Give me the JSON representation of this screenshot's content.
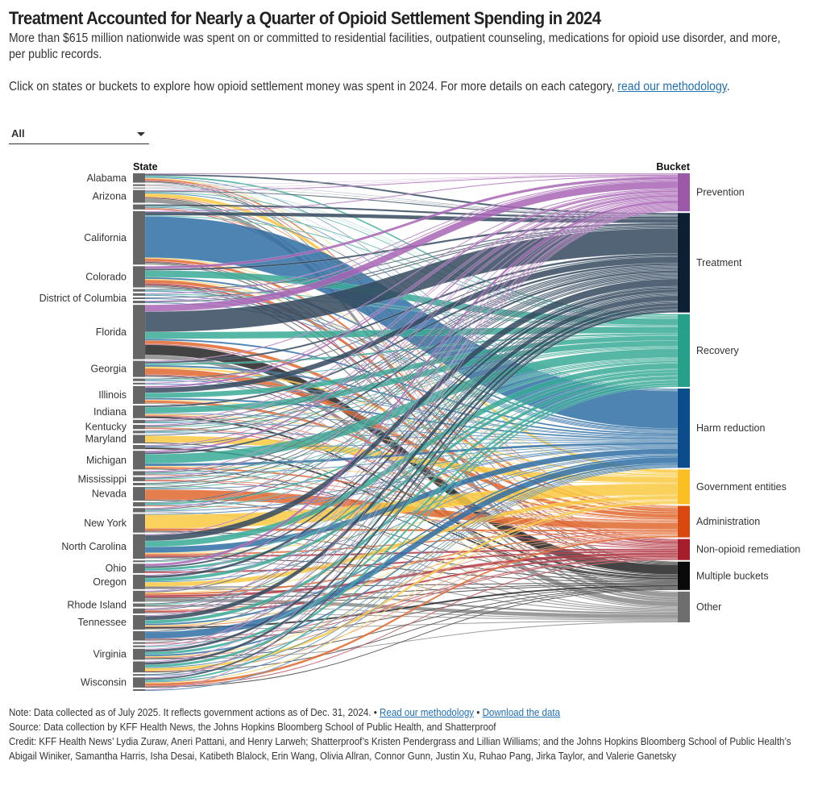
{
  "title": "Treatment Accounted for Nearly a Quarter of Opioid Settlement Spending in 2024",
  "subtitle": "More than $615 million nationwide was spent on or committed to residential facilities, outpatient counseling, medications for opioid use disorder, and more, per public records.",
  "instructions": {
    "text": "Click on states or buckets to explore how opioid settlement money was spent in 2024. For more details on each category, ",
    "link": "read our methodology",
    "end": "."
  },
  "filter": {
    "selected": "All"
  },
  "footer": {
    "note": "Note: Data collected as of July 2025. It reflects government actions as of Dec. 31, 2024. • ",
    "methodology_link": "Read our methodology",
    "separator": " • ",
    "download_link": "Download the data",
    "source": "Source: Data collection by KFF Health News, the Johns Hopkins Bloomberg School of Public Health, and Shatterproof",
    "credit": "Credit: KFF Health News’ Lydia Zuraw, Aneri Pattani, and Henry Larweh; Shatterproof’s Kristen Pendergrass and Lillian Williams; and the Johns Hopkins Bloomberg School of Public Health’s Abigail Winiker, Samantha Harris, Isha Desai, Katibeth Blalock, Erin Wang, Olivia Allran, Connor Gunn, Justin Xu, Ruhao Pang, Jirka Taylor, and Valerie Ganetsky"
  },
  "chart_data": {
    "type": "sankey",
    "source_header": "State",
    "target_header": "Bucket",
    "node_color": "#666666",
    "buckets": [
      {
        "name": "Prevention",
        "color": "#9b59a8",
        "value": 47
      },
      {
        "name": "Treatment",
        "color": "#0d1f33",
        "value": 123
      },
      {
        "name": "Recovery",
        "color": "#26a08a",
        "value": 90
      },
      {
        "name": "Harm reduction",
        "color": "#0b4d8c",
        "value": 98
      },
      {
        "name": "Government entities",
        "color": "#fbbf24",
        "value": 43
      },
      {
        "name": "Administration",
        "color": "#d9480f",
        "value": 39
      },
      {
        "name": "Non-opioid remediation",
        "color": "#a61e2b",
        "value": 26
      },
      {
        "name": "Multiple buckets",
        "color": "#0a0a0a",
        "value": 35
      },
      {
        "name": "Other",
        "color": "#6e6e6e",
        "value": 38
      }
    ],
    "flow_colors": [
      "#a865b5",
      "#34495e",
      "#3aaa96",
      "#2f6ea5",
      "#f9c940",
      "#e0672e",
      "#b33a45",
      "#222222",
      "#888888"
    ],
    "states": [
      {
        "name": "Alabama",
        "value": 11,
        "mix": [
          1,
          2,
          2,
          1,
          1,
          2,
          1,
          1,
          1
        ]
      },
      {
        "name": "",
        "value": 2,
        "mix": [
          1,
          1,
          1,
          1,
          0,
          1,
          0,
          0,
          0
        ]
      },
      {
        "name": "",
        "value": 1,
        "mix": [
          1,
          1,
          1,
          0,
          0,
          0,
          0,
          0,
          0
        ]
      },
      {
        "name": "Arizona",
        "value": 15,
        "mix": [
          1,
          1,
          1,
          1,
          4,
          1,
          0,
          1,
          5
        ]
      },
      {
        "name": "",
        "value": 6,
        "mix": [
          0,
          2,
          1,
          1,
          0,
          1,
          1,
          0,
          0
        ]
      },
      {
        "name": "California",
        "value": 63,
        "mix": [
          1,
          4,
          1,
          48,
          1,
          3,
          1,
          1,
          2
        ]
      },
      {
        "name": "Colorado",
        "value": 25,
        "mix": [
          3,
          2,
          8,
          2,
          1,
          4,
          2,
          1,
          2
        ]
      },
      {
        "name": "",
        "value": 3,
        "mix": [
          0,
          1,
          1,
          1,
          0,
          0,
          0,
          0,
          0
        ]
      },
      {
        "name": "",
        "value": 3,
        "mix": [
          1,
          0,
          1,
          1,
          0,
          0,
          0,
          0,
          0
        ]
      },
      {
        "name": "District of Columbia",
        "value": 2,
        "mix": [
          0,
          1,
          0,
          1,
          0,
          0,
          0,
          0,
          0
        ]
      },
      {
        "name": "",
        "value": 3,
        "mix": [
          1,
          1,
          0,
          1,
          0,
          0,
          0,
          0,
          0
        ]
      },
      {
        "name": "Florida",
        "value": 64,
        "mix": [
          8,
          24,
          8,
          2,
          0,
          4,
          1,
          12,
          5
        ]
      },
      {
        "name": "Georgia",
        "value": 19,
        "mix": [
          1,
          2,
          2,
          2,
          2,
          7,
          1,
          1,
          1
        ]
      },
      {
        "name": "",
        "value": 3,
        "mix": [
          0,
          1,
          1,
          1,
          0,
          0,
          0,
          0,
          0
        ]
      },
      {
        "name": "",
        "value": 2,
        "mix": [
          1,
          0,
          0,
          1,
          0,
          0,
          0,
          0,
          0
        ]
      },
      {
        "name": "Illinois",
        "value": 21,
        "mix": [
          2,
          6,
          6,
          2,
          1,
          3,
          0,
          0,
          1
        ]
      },
      {
        "name": "Indiana",
        "value": 15,
        "mix": [
          0,
          2,
          7,
          1,
          1,
          1,
          1,
          2,
          0
        ]
      },
      {
        "name": "",
        "value": 4,
        "mix": [
          1,
          1,
          1,
          1,
          0,
          0,
          0,
          0,
          0
        ]
      },
      {
        "name": "Kentucky",
        "value": 5,
        "mix": [
          1,
          1,
          1,
          0,
          0,
          1,
          1,
          0,
          0
        ]
      },
      {
        "name": "",
        "value": 3,
        "mix": [
          0,
          1,
          1,
          1,
          0,
          0,
          0,
          0,
          0
        ]
      },
      {
        "name": "Maryland",
        "value": 10,
        "mix": [
          0,
          1,
          0,
          0,
          8,
          0,
          0,
          1,
          0
        ]
      },
      {
        "name": "",
        "value": 5,
        "mix": [
          1,
          1,
          0,
          1,
          0,
          0,
          0,
          2,
          0
        ]
      },
      {
        "name": "Michigan",
        "value": 22,
        "mix": [
          2,
          2,
          11,
          3,
          1,
          2,
          0,
          1,
          0
        ]
      },
      {
        "name": "",
        "value": 5,
        "mix": [
          1,
          1,
          1,
          1,
          0,
          1,
          0,
          0,
          0
        ]
      },
      {
        "name": "Mississippi",
        "value": 5,
        "mix": [
          1,
          1,
          1,
          0,
          0,
          1,
          1,
          0,
          0
        ]
      },
      {
        "name": "",
        "value": 3,
        "mix": [
          0,
          1,
          1,
          0,
          0,
          0,
          0,
          0,
          1
        ]
      },
      {
        "name": "Nevada",
        "value": 16,
        "mix": [
          0,
          1,
          1,
          1,
          0,
          12,
          0,
          1,
          0
        ]
      },
      {
        "name": "",
        "value": 5,
        "mix": [
          0,
          1,
          2,
          1,
          0,
          1,
          0,
          0,
          0
        ]
      },
      {
        "name": "",
        "value": 5,
        "mix": [
          1,
          1,
          1,
          1,
          0,
          0,
          0,
          0,
          1
        ]
      },
      {
        "name": "New York",
        "value": 22,
        "mix": [
          0,
          0,
          0,
          1,
          16,
          3,
          0,
          1,
          1
        ]
      },
      {
        "name": "North Carolina",
        "value": 29,
        "mix": [
          1,
          7,
          7,
          7,
          1,
          2,
          2,
          1,
          1
        ]
      },
      {
        "name": "",
        "value": 2,
        "mix": [
          0,
          1,
          1,
          0,
          0,
          0,
          0,
          0,
          0
        ]
      },
      {
        "name": "Ohio",
        "value": 11,
        "mix": [
          3,
          2,
          3,
          1,
          0,
          0,
          2,
          0,
          0
        ]
      },
      {
        "name": "Oregon",
        "value": 17,
        "mix": [
          1,
          3,
          4,
          1,
          5,
          0,
          0,
          1,
          2
        ]
      },
      {
        "name": "",
        "value": 13,
        "mix": [
          1,
          1,
          0,
          0,
          1,
          2,
          3,
          1,
          4
        ]
      },
      {
        "name": "Rhode Island",
        "value": 4,
        "mix": [
          0,
          1,
          1,
          0,
          0,
          0,
          0,
          1,
          1
        ]
      },
      {
        "name": "",
        "value": 6,
        "mix": [
          1,
          1,
          0,
          0,
          0,
          1,
          2,
          0,
          1
        ]
      },
      {
        "name": "Tennessee",
        "value": 17,
        "mix": [
          1,
          5,
          4,
          2,
          1,
          1,
          0,
          2,
          1
        ]
      },
      {
        "name": "",
        "value": 11,
        "mix": [
          0,
          1,
          0,
          8,
          0,
          0,
          1,
          1,
          0
        ]
      },
      {
        "name": "",
        "value": 2,
        "mix": [
          0,
          1,
          0,
          0,
          0,
          0,
          1,
          0,
          0
        ]
      },
      {
        "name": "",
        "value": 2,
        "mix": [
          1,
          0,
          1,
          0,
          0,
          0,
          0,
          0,
          0
        ]
      },
      {
        "name": "Virginia",
        "value": 13,
        "mix": [
          1,
          3,
          3,
          2,
          1,
          1,
          0,
          1,
          1
        ]
      },
      {
        "name": "",
        "value": 13,
        "mix": [
          1,
          3,
          3,
          1,
          3,
          1,
          0,
          1,
          0
        ]
      },
      {
        "name": "",
        "value": 2,
        "mix": [
          0,
          1,
          0,
          1,
          0,
          0,
          0,
          0,
          0
        ]
      },
      {
        "name": "Wisconsin",
        "value": 12,
        "mix": [
          1,
          2,
          2,
          1,
          1,
          3,
          1,
          1,
          0
        ]
      },
      {
        "name": "",
        "value": 2,
        "mix": [
          1,
          0,
          0,
          1,
          0,
          0,
          0,
          0,
          0
        ]
      }
    ]
  }
}
